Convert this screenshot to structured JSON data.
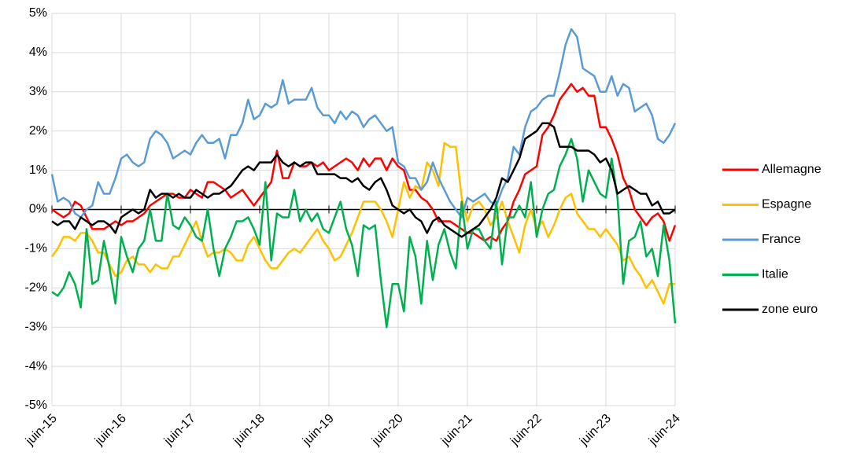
{
  "chart_data": {
    "type": "line",
    "categories": [
      "juin-15",
      null,
      null,
      null,
      null,
      null,
      null,
      null,
      null,
      null,
      null,
      null,
      "juin-16",
      null,
      null,
      null,
      null,
      null,
      null,
      null,
      null,
      null,
      null,
      null,
      "juin-17",
      null,
      null,
      null,
      null,
      null,
      null,
      null,
      null,
      null,
      null,
      null,
      "juin-18",
      null,
      null,
      null,
      null,
      null,
      null,
      null,
      null,
      null,
      null,
      null,
      "juin-19",
      null,
      null,
      null,
      null,
      null,
      null,
      null,
      null,
      null,
      null,
      null,
      "juin-20",
      null,
      null,
      null,
      null,
      null,
      null,
      null,
      null,
      null,
      null,
      null,
      "juin-21",
      null,
      null,
      null,
      null,
      null,
      null,
      null,
      null,
      null,
      null,
      null,
      "juin-22",
      null,
      null,
      null,
      null,
      null,
      null,
      null,
      null,
      null,
      null,
      null,
      "juin-23",
      null,
      null,
      null,
      null,
      null,
      null,
      null,
      null,
      null,
      null,
      null,
      "juin-24"
    ],
    "ylim": [
      -5,
      5
    ],
    "yticks": [
      {
        "value": -5,
        "label": "-5%"
      },
      {
        "value": -4,
        "label": "-4%"
      },
      {
        "value": -3,
        "label": "-3%"
      },
      {
        "value": -2,
        "label": "-2%"
      },
      {
        "value": -1,
        "label": "-1%"
      },
      {
        "value": 0,
        "label": "0%"
      },
      {
        "value": 1,
        "label": "1%"
      },
      {
        "value": 2,
        "label": "2%"
      },
      {
        "value": 3,
        "label": "3%"
      },
      {
        "value": 4,
        "label": "4%"
      },
      {
        "value": 5,
        "label": "5%"
      }
    ],
    "grid": true,
    "legend": "right",
    "series": [
      {
        "name": "Allemagne",
        "color": "#ff0000",
        "values": [
          0.0,
          -0.1,
          -0.2,
          -0.1,
          0.2,
          0.1,
          -0.2,
          -0.5,
          -0.5,
          -0.5,
          -0.4,
          -0.3,
          -0.4,
          -0.3,
          -0.3,
          -0.2,
          -0.1,
          0.1,
          0.2,
          0.3,
          0.4,
          0.4,
          0.3,
          0.3,
          0.5,
          0.4,
          0.3,
          0.7,
          0.7,
          0.6,
          0.5,
          0.3,
          0.4,
          0.5,
          0.3,
          0.1,
          0.3,
          0.5,
          0.7,
          1.5,
          0.8,
          0.8,
          1.2,
          1.1,
          1.1,
          1.2,
          1.1,
          1.2,
          1.0,
          1.1,
          1.2,
          1.3,
          1.2,
          1.0,
          1.3,
          1.1,
          1.3,
          1.3,
          1.0,
          1.3,
          1.1,
          1.0,
          0.5,
          0.5,
          0.3,
          0.2,
          0.0,
          -0.3,
          -0.3,
          -0.3,
          -0.4,
          -0.5,
          -0.6,
          -0.6,
          -0.7,
          -0.8,
          -0.7,
          -0.8,
          -0.5,
          -0.3,
          0.2,
          0.5,
          0.9,
          1.0,
          1.1,
          1.9,
          2.1,
          2.4,
          2.8,
          3.0,
          3.2,
          3.0,
          3.1,
          2.9,
          2.9,
          2.1,
          2.1,
          1.8,
          1.4,
          0.8,
          0.5,
          0.0,
          -0.2,
          -0.4,
          -0.2,
          -0.1,
          -0.3,
          -0.8,
          -0.4
        ]
      },
      {
        "name": "Espagne",
        "color": "#ffc000",
        "values": [
          -1.2,
          -1.0,
          -0.7,
          -0.7,
          -0.8,
          -0.6,
          -0.6,
          -0.8,
          -1.1,
          -1.1,
          -1.4,
          -1.7,
          -1.6,
          -1.3,
          -1.2,
          -1.4,
          -1.4,
          -1.6,
          -1.4,
          -1.5,
          -1.5,
          -1.2,
          -1.2,
          -0.9,
          -0.6,
          -0.3,
          -0.8,
          -1.2,
          -1.1,
          -1.1,
          -1.0,
          -1.1,
          -1.3,
          -1.3,
          -0.9,
          -0.7,
          -1.0,
          -1.3,
          -1.5,
          -1.5,
          -1.3,
          -1.1,
          -1.0,
          -1.1,
          -0.9,
          -0.7,
          -0.5,
          -0.8,
          -1.0,
          -1.3,
          -1.2,
          -0.9,
          -0.6,
          -0.2,
          0.2,
          0.2,
          0.2,
          0.0,
          -0.3,
          -0.7,
          0.0,
          0.7,
          0.3,
          0.6,
          0.5,
          1.2,
          1.0,
          0.6,
          1.7,
          1.6,
          1.6,
          0.3,
          -0.3,
          0.1,
          0.2,
          0.0,
          -0.4,
          -0.2,
          0.2,
          -0.3,
          -0.7,
          -1.1,
          -0.4,
          0.0,
          -0.5,
          -0.3,
          -0.7,
          -0.4,
          0.0,
          0.3,
          0.4,
          -0.1,
          -0.3,
          -0.5,
          -0.5,
          -0.7,
          -0.5,
          -0.7,
          -0.9,
          -1.3,
          -1.2,
          -1.5,
          -1.7,
          -2.0,
          -1.8,
          -2.1,
          -2.4,
          -1.9,
          -1.9
        ]
      },
      {
        "name": "France",
        "color": "#5b9bd5",
        "values": [
          0.9,
          0.2,
          0.3,
          0.2,
          -0.1,
          -0.2,
          0.0,
          0.1,
          0.7,
          0.4,
          0.4,
          0.8,
          1.3,
          1.4,
          1.2,
          1.1,
          1.2,
          1.8,
          2.0,
          1.9,
          1.7,
          1.3,
          1.4,
          1.5,
          1.4,
          1.7,
          1.9,
          1.7,
          1.7,
          1.8,
          1.3,
          1.9,
          1.9,
          2.2,
          2.8,
          2.3,
          2.4,
          2.7,
          2.6,
          2.7,
          3.3,
          2.7,
          2.8,
          2.8,
          2.8,
          3.1,
          2.6,
          2.4,
          2.4,
          2.2,
          2.5,
          2.3,
          2.5,
          2.4,
          2.1,
          2.3,
          2.4,
          2.2,
          2.0,
          2.1,
          1.2,
          1.1,
          0.8,
          0.8,
          0.5,
          0.7,
          1.2,
          0.8,
          0.5,
          0.2,
          0.0,
          -0.2,
          0.3,
          0.2,
          0.3,
          0.4,
          0.2,
          0.1,
          0.5,
          0.8,
          1.6,
          1.4,
          2.1,
          2.5,
          2.6,
          2.8,
          2.9,
          2.9,
          3.5,
          4.2,
          4.6,
          4.4,
          3.6,
          3.5,
          3.4,
          3.0,
          3.0,
          3.4,
          2.9,
          3.2,
          3.1,
          2.5,
          2.6,
          2.7,
          2.4,
          1.8,
          1.7,
          1.9,
          2.2
        ]
      },
      {
        "name": "Italie",
        "color": "#00b050",
        "values": [
          -2.1,
          -2.2,
          -2.0,
          -1.6,
          -1.9,
          -2.5,
          -0.5,
          -1.9,
          -1.8,
          -0.8,
          -1.5,
          -2.4,
          -0.7,
          -1.2,
          -1.6,
          -1.0,
          -0.8,
          0.0,
          -0.8,
          -0.8,
          0.4,
          -0.4,
          -0.5,
          -0.2,
          -0.4,
          -0.7,
          -0.8,
          0.0,
          -1.0,
          -1.7,
          -1.0,
          -0.7,
          -0.3,
          -0.3,
          -0.2,
          -0.5,
          -0.9,
          0.7,
          -1.3,
          -0.1,
          -0.2,
          -0.2,
          0.5,
          -0.3,
          0.0,
          -0.3,
          -0.1,
          -0.5,
          -0.6,
          -0.2,
          0.2,
          -0.5,
          -0.9,
          -1.7,
          -0.4,
          -0.5,
          -0.4,
          -1.8,
          -3.0,
          -1.9,
          -1.9,
          -2.6,
          -0.7,
          -1.2,
          -2.4,
          -0.8,
          -1.8,
          -0.9,
          -0.5,
          -1.1,
          -1.5,
          0.2,
          -1.0,
          -0.5,
          -0.5,
          -0.8,
          -1.0,
          0.2,
          -1.4,
          -0.2,
          -0.2,
          0.1,
          -0.2,
          0.7,
          -0.7,
          0.0,
          0.4,
          0.5,
          1.1,
          1.4,
          1.8,
          1.3,
          0.2,
          1.0,
          0.7,
          0.4,
          0.3,
          1.3,
          0.3,
          -1.9,
          -0.8,
          -0.7,
          -0.3,
          -1.2,
          -1.0,
          -1.7,
          -0.4,
          -1.3,
          -2.9
        ]
      },
      {
        "name": "zone euro",
        "color": "#000000",
        "values": [
          -0.3,
          -0.4,
          -0.3,
          -0.3,
          -0.5,
          -0.2,
          -0.3,
          -0.4,
          -0.3,
          -0.3,
          -0.4,
          -0.6,
          -0.2,
          -0.1,
          0.0,
          -0.1,
          0.0,
          0.5,
          0.3,
          0.4,
          0.4,
          0.3,
          0.4,
          0.3,
          0.3,
          0.5,
          0.4,
          0.3,
          0.4,
          0.4,
          0.5,
          0.6,
          0.8,
          1.0,
          1.1,
          1.0,
          1.2,
          1.2,
          1.2,
          1.4,
          1.2,
          1.1,
          1.2,
          1.1,
          1.2,
          1.2,
          0.9,
          0.9,
          0.9,
          0.9,
          0.8,
          0.8,
          0.7,
          0.8,
          0.6,
          0.5,
          0.7,
          0.8,
          0.5,
          0.1,
          0.0,
          -0.1,
          0.0,
          -0.2,
          -0.3,
          -0.6,
          -0.3,
          -0.2,
          -0.4,
          -0.5,
          -0.6,
          -0.7,
          -0.6,
          -0.5,
          -0.4,
          -0.2,
          0.0,
          0.3,
          0.8,
          0.7,
          1.0,
          1.3,
          1.8,
          1.9,
          2.0,
          2.2,
          2.2,
          2.1,
          1.6,
          1.6,
          1.6,
          1.5,
          1.5,
          1.5,
          1.4,
          1.2,
          1.3,
          1.0,
          0.4,
          0.5,
          0.6,
          0.5,
          0.4,
          0.4,
          0.1,
          0.2,
          -0.1,
          -0.1,
          0.0
        ]
      }
    ]
  }
}
